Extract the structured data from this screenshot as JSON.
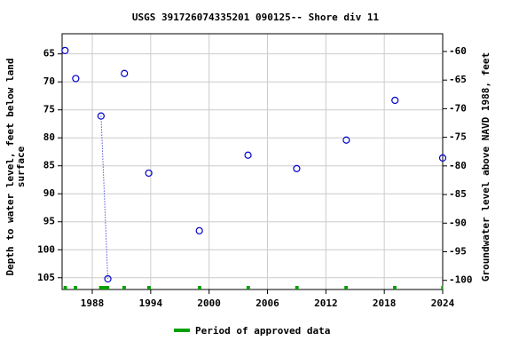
{
  "chart_data": {
    "type": "scatter",
    "title": "USGS 391726074335201 090125-- Shore div 11",
    "y_label": [
      "Depth to water level, feet below land",
      "surface"
    ],
    "y2_label": "Groundwater level above NAVD 1988, feet",
    "x": [
      1985.2,
      null,
      1986.3,
      null,
      1988.9,
      1989.6,
      null,
      1991.3,
      null,
      1993.8,
      null,
      1999.0,
      null,
      2004.0,
      null,
      2009.0,
      null,
      2014.1,
      null,
      2019.1,
      null,
      2024.0
    ],
    "series": [
      {
        "name": "Depth to water level",
        "color": "#0000cc",
        "values": [
          64.4,
          null,
          69.4,
          null,
          76.1,
          105.2,
          null,
          68.5,
          null,
          86.3,
          null,
          96.6,
          null,
          83.1,
          null,
          85.5,
          null,
          80.4,
          null,
          73.3,
          null,
          83.6
        ]
      }
    ],
    "xlim": [
      1984.9,
      2024
    ],
    "xticks": [
      1988,
      1994,
      2000,
      2006,
      2012,
      2018,
      2024
    ],
    "ylim": [
      107.1,
      61.4
    ],
    "yticks": [
      65,
      70,
      75,
      80,
      85,
      90,
      95,
      100,
      105
    ],
    "y2lim": [
      -101.6,
      -56.9
    ],
    "y2ticks": [
      -60,
      -65,
      -70,
      -75,
      -80,
      -85,
      -90,
      -95,
      -100
    ],
    "grid": true,
    "approved_periods": [
      [
        1985.05,
        1985.4
      ],
      [
        1986.1,
        1986.45
      ],
      [
        1988.7,
        1989.75
      ],
      [
        1991.1,
        1991.45
      ],
      [
        1993.65,
        1994.0
      ],
      [
        1998.85,
        1999.2
      ],
      [
        2003.85,
        2004.2
      ],
      [
        2008.85,
        2009.2
      ],
      [
        2013.9,
        2014.25
      ],
      [
        2018.9,
        2019.25
      ],
      [
        2023.85,
        2024.0
      ]
    ],
    "approved_color": "#00a000",
    "legend": "Period of approved data"
  }
}
